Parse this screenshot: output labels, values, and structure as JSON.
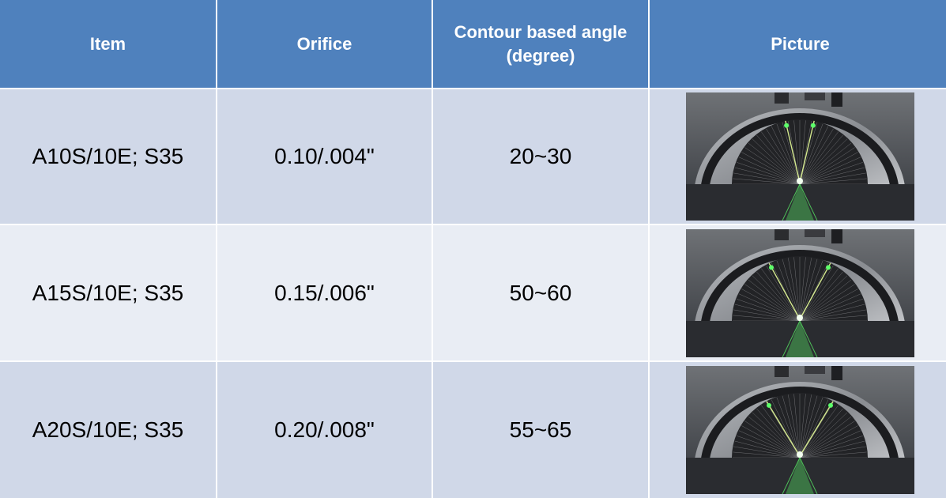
{
  "header": {
    "item": "Item",
    "orifice": "Orifice",
    "angle_line1": "Contour based angle",
    "angle_line2": "(degree)",
    "picture": "Picture"
  },
  "rows": [
    {
      "item": "A10S/10E; S35",
      "orifice": "0.10/.004\"",
      "angle": "20~30",
      "picture_icon": "spray-angle-photo-icon"
    },
    {
      "item": "A15S/10E; S35",
      "orifice": "0.15/.006\"",
      "angle": "50~60",
      "picture_icon": "spray-angle-photo-icon"
    },
    {
      "item": "A20S/10E; S35",
      "orifice": "0.20/.008\"",
      "angle": "55~65",
      "picture_icon": "spray-angle-photo-icon"
    }
  ],
  "colors": {
    "header_bg": "#4f81bd",
    "row_dark": "#d0d8e8",
    "row_light": "#e9edf4",
    "laser_green": "#5dff6a"
  }
}
